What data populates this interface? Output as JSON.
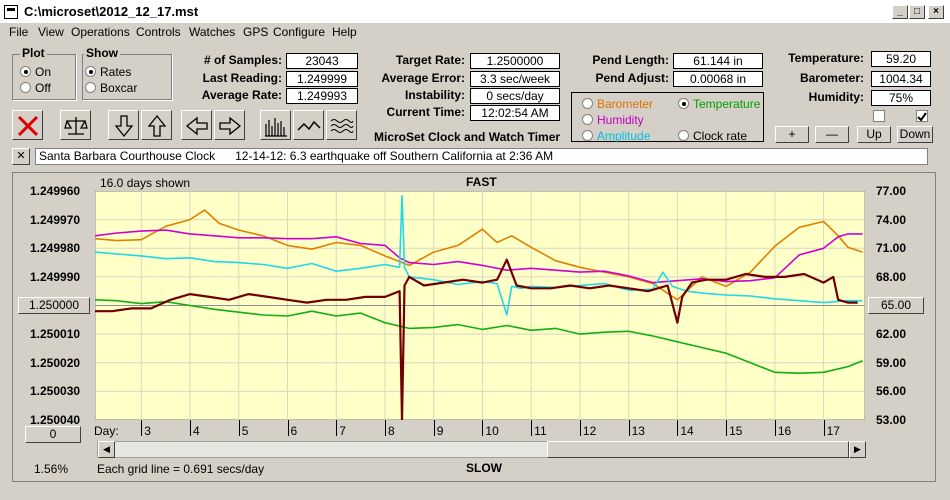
{
  "window": {
    "title": "C:\\microset\\2012_12_17.mst"
  },
  "menu": [
    "File",
    "View",
    "Operations",
    "Controls",
    "Watches",
    "GPS",
    "Configure",
    "Help"
  ],
  "plot": {
    "title": "Plot",
    "on": "On",
    "off": "Off"
  },
  "show": {
    "title": "Show",
    "rates": "Rates",
    "boxcar": "Boxcar"
  },
  "fields": {
    "samples_lbl": "# of Samples:",
    "samples": "23043",
    "last_lbl": "Last Reading:",
    "last": "1.249999",
    "avg_lbl": "Average Rate:",
    "avg": "1.249993",
    "target_lbl": "Target Rate:",
    "target": "1.2500000",
    "avgerr_lbl": "Average Error:",
    "avgerr": "3.3 sec/week",
    "instab_lbl": "Instability:",
    "instab": "0 secs/day",
    "time_lbl": "Current Time:",
    "time": "12:02:54 AM",
    "pendlen_lbl": "Pend Length:",
    "pendlen": "61.144 in",
    "pendadj_lbl": "Pend Adjust:",
    "pendadj": "0.00068 in",
    "temp_lbl": "Temperature:",
    "temp": "59.20",
    "baro_lbl": "Barometer:",
    "baro": "1004.34",
    "hum_lbl": "Humidity:",
    "hum": "75%"
  },
  "app_name": "MicroSet Clock and Watch Timer",
  "sensors": [
    {
      "label": "Barometer",
      "color": "#e07000"
    },
    {
      "label": "Temperature",
      "color": "#00a000"
    },
    {
      "label": "Humidity",
      "color": "#c000c0"
    },
    {
      "label": "Amplitude",
      "color": "#00c0e0"
    },
    {
      "label": "Clock rate",
      "color": "#000000"
    }
  ],
  "buttons": {
    "plus": "+",
    "minus": "—",
    "up": "Up",
    "down": "Down",
    "zero": "0",
    "x": "✕"
  },
  "note": "Santa Barbara Courthouse Clock      12-14-12: 6.3 earthquake off Southern California at 2:36 AM",
  "plot_labels": {
    "days_shown": "16.0 days shown",
    "fast": "FAST",
    "slow": "SLOW",
    "grid_note": "Each grid line = 0.691 secs/day",
    "pct": "1.56%",
    "day": "Day:",
    "left_center": "1.250000",
    "right_center": "65.00"
  },
  "chart_data": {
    "type": "line",
    "x_label": "Day:",
    "x_ticks": [
      "3",
      "4",
      "5",
      "6",
      "7",
      "8",
      "9",
      "10",
      "11",
      "12",
      "13",
      "14",
      "15",
      "16",
      "17"
    ],
    "x_range": [
      2.05,
      17.85
    ],
    "left_axis": {
      "ticks": [
        "1.249960",
        "1.249970",
        "1.249980",
        "1.249990",
        "1.250000",
        "1.250010",
        "1.250020",
        "1.250030",
        "1.250040"
      ],
      "range": [
        1.24996,
        1.25004
      ],
      "inverted": true
    },
    "right_axis": {
      "ticks": [
        "77.00",
        "74.00",
        "71.00",
        "68.00",
        "65.00",
        "62.00",
        "59.00",
        "56.00",
        "53.00"
      ],
      "range": [
        53,
        77
      ]
    },
    "colors": {
      "rate": "#700000",
      "temperature": "#10b010",
      "barometer": "#e08000",
      "humidity": "#d000d0",
      "amplitude": "#20d8e8"
    },
    "series": [
      {
        "name": "Clock rate",
        "axis": "left",
        "x": [
          2.05,
          2.4,
          2.8,
          3.2,
          3.6,
          4.0,
          4.4,
          4.8,
          5.2,
          5.6,
          6.0,
          6.4,
          6.8,
          7.2,
          7.6,
          8.0,
          8.3,
          8.35,
          8.4,
          8.5,
          8.8,
          9.2,
          9.6,
          10.0,
          10.3,
          10.5,
          10.7,
          11.0,
          11.4,
          11.8,
          12.2,
          12.6,
          13.0,
          13.4,
          13.8,
          14.0,
          14.1,
          14.3,
          14.6,
          15.0,
          15.4,
          15.8,
          16.2,
          16.6,
          17.0,
          17.2,
          17.3,
          17.5,
          17.7
        ],
        "y": [
          1.250002,
          1.250002,
          1.250001,
          1.250001,
          1.249998,
          1.249996,
          1.249997,
          1.249998,
          1.249996,
          1.249997,
          1.249998,
          1.249999,
          1.249998,
          1.249998,
          1.249997,
          1.249997,
          1.249995,
          1.25004,
          1.249993,
          1.24999,
          1.249993,
          1.249992,
          1.249991,
          1.249992,
          1.249991,
          1.249984,
          1.249993,
          1.249994,
          1.249994,
          1.249993,
          1.249994,
          1.249993,
          1.249994,
          1.249995,
          1.249993,
          1.250006,
          1.249997,
          1.249992,
          1.249991,
          1.249991,
          1.249989,
          1.24999,
          1.24999,
          1.249989,
          1.249992,
          1.24999,
          1.249998,
          1.249999,
          1.249999
        ]
      },
      {
        "name": "Temperature",
        "axis": "right",
        "x": [
          2.05,
          2.5,
          3.0,
          3.5,
          4.0,
          4.5,
          5.0,
          5.5,
          6.0,
          6.5,
          7.0,
          7.5,
          8.0,
          8.5,
          9.0,
          9.5,
          10.0,
          10.5,
          11.0,
          11.5,
          12.0,
          12.5,
          13.0,
          13.5,
          14.0,
          14.5,
          15.0,
          15.5,
          16.0,
          16.5,
          17.0,
          17.5,
          17.8
        ],
        "y": [
          65.6,
          65.5,
          65.2,
          65.4,
          65.0,
          64.6,
          64.3,
          64.0,
          63.9,
          64.4,
          63.9,
          64.2,
          63.2,
          62.6,
          62.7,
          63.0,
          62.5,
          62.9,
          62.4,
          62.6,
          62.0,
          62.2,
          62.3,
          61.8,
          61.2,
          60.6,
          60.0,
          59.0,
          58.0,
          57.9,
          58.0,
          58.6,
          59.2
        ]
      },
      {
        "name": "Barometer",
        "axis": "right",
        "x": [
          2.05,
          2.5,
          3.0,
          3.5,
          4.0,
          4.3,
          4.6,
          5.0,
          5.5,
          6.0,
          6.5,
          7.0,
          7.5,
          8.0,
          8.5,
          9.0,
          9.5,
          10.0,
          10.3,
          10.6,
          11.0,
          11.5,
          12.0,
          12.5,
          13.0,
          13.5,
          14.0,
          14.5,
          15.0,
          15.5,
          16.0,
          16.5,
          17.0,
          17.3,
          17.5,
          17.8
        ],
        "y": [
          72.0,
          71.8,
          71.9,
          73.3,
          74.0,
          75.0,
          73.6,
          72.9,
          72.3,
          71.3,
          70.9,
          71.6,
          71.3,
          70.2,
          69.2,
          70.6,
          71.3,
          73.0,
          71.6,
          72.3,
          71.1,
          69.7,
          69.0,
          68.5,
          68.0,
          67.3,
          65.6,
          68.0,
          67.0,
          68.5,
          71.2,
          73.2,
          73.8,
          72.3,
          71.1,
          70.6
        ]
      },
      {
        "name": "Humidity",
        "axis": "right",
        "x": [
          2.05,
          2.5,
          3.0,
          3.5,
          4.0,
          4.5,
          5.0,
          5.5,
          6.0,
          6.5,
          7.0,
          7.5,
          8.0,
          8.3,
          8.5,
          9.0,
          9.5,
          10.0,
          10.5,
          11.0,
          11.5,
          12.0,
          12.5,
          13.0,
          13.5,
          14.0,
          14.5,
          15.0,
          15.5,
          16.0,
          16.5,
          17.0,
          17.3,
          17.5,
          17.8
        ],
        "y": [
          72.3,
          72.6,
          72.8,
          72.9,
          72.5,
          72.3,
          72.1,
          72.1,
          72.0,
          72.0,
          72.2,
          71.5,
          71.3,
          70.0,
          69.5,
          69.3,
          69.6,
          69.2,
          68.7,
          68.9,
          68.7,
          68.5,
          68.6,
          68.1,
          67.4,
          67.6,
          67.8,
          67.5,
          67.6,
          67.9,
          70.3,
          71.0,
          72.2,
          72.5,
          72.5
        ]
      },
      {
        "name": "Amplitude",
        "axis": "right",
        "x": [
          2.05,
          2.5,
          3.0,
          3.5,
          4.0,
          4.5,
          5.0,
          5.5,
          6.0,
          6.5,
          7.0,
          7.5,
          8.0,
          8.3,
          8.35,
          8.4,
          8.5,
          9.0,
          9.5,
          10.0,
          10.3,
          10.5,
          10.6,
          10.8,
          11.0,
          11.5,
          12.0,
          12.5,
          13.0,
          13.5,
          13.7,
          13.9,
          14.2,
          14.5,
          15.0,
          15.5,
          16.0,
          16.5,
          17.0,
          17.5,
          17.8
        ],
        "y": [
          70.6,
          70.4,
          70.2,
          69.9,
          70.0,
          69.6,
          69.5,
          69.3,
          68.9,
          69.4,
          68.6,
          68.9,
          69.3,
          69.0,
          76.5,
          69.0,
          68.0,
          67.7,
          67.2,
          67.5,
          67.3,
          64.0,
          67.0,
          66.8,
          67.0,
          66.9,
          67.1,
          67.3,
          66.6,
          66.7,
          68.5,
          67.0,
          66.5,
          66.3,
          66.1,
          66.0,
          65.7,
          65.5,
          65.3,
          65.5,
          65.5
        ]
      }
    ]
  }
}
